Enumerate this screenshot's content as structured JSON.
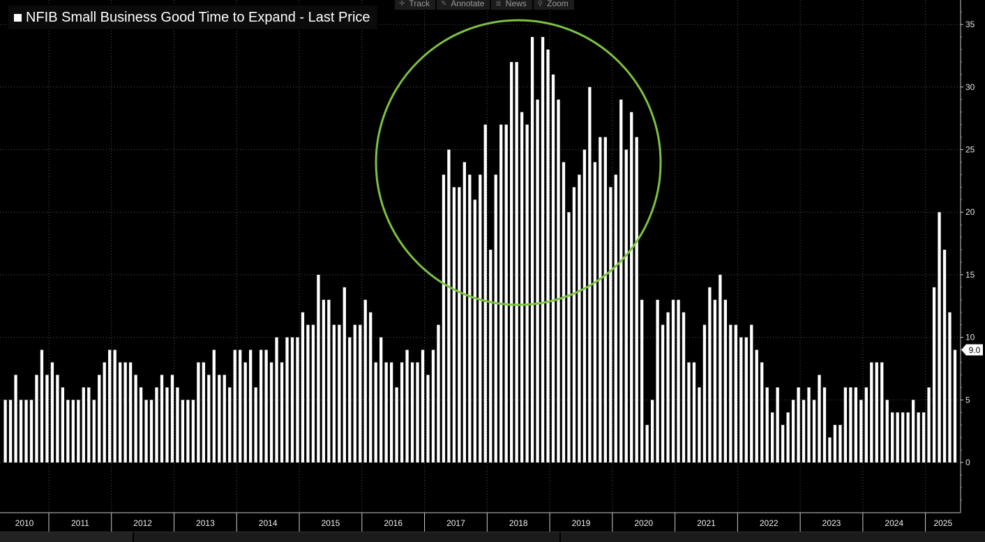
{
  "legend": {
    "label": "NFIB Small Business Good Time to Expand - Last Price"
  },
  "toolbar": [
    {
      "label": "Track",
      "icon": "crosshair-icon"
    },
    {
      "label": "Annotate",
      "icon": "pencil-icon"
    },
    {
      "label": "News",
      "icon": "news-icon"
    },
    {
      "label": "Zoom",
      "icon": "magnifier-icon"
    }
  ],
  "colors": {
    "background": "#000000",
    "bars": "#ffffff",
    "grid": "#5a5a5a",
    "highlight_circle": "#7dc242"
  },
  "chart_data": {
    "type": "bar",
    "title": "NFIB Small Business Good Time to Expand - Last Price",
    "y_axis": {
      "position": "right",
      "ylim": [
        -3,
        36
      ],
      "ticks": [
        0,
        5,
        10,
        15,
        20,
        25,
        30,
        35
      ]
    },
    "x_axis": {
      "years": [
        "2010",
        "2011",
        "2012",
        "2013",
        "2014",
        "2015",
        "2016",
        "2017",
        "2018",
        "2019",
        "2020",
        "2021",
        "2022",
        "2023",
        "2024",
        "2025"
      ]
    },
    "grid": true,
    "last_value_label": "9.0",
    "series": [
      {
        "values": [
          5,
          5,
          7,
          5,
          5,
          5,
          7,
          9,
          7,
          8,
          7,
          6,
          5,
          5,
          5,
          6,
          6,
          5,
          7,
          8,
          9,
          9,
          8,
          8,
          8,
          7,
          6,
          5,
          5,
          6,
          7,
          6,
          7,
          6,
          5,
          5,
          5,
          8,
          8,
          7,
          9,
          7,
          7,
          6,
          9,
          9,
          8,
          9,
          6,
          9,
          9,
          8,
          10,
          8,
          10,
          10,
          10,
          12,
          11,
          11,
          15,
          13,
          13,
          11,
          11,
          14,
          10,
          11,
          11,
          13,
          12,
          8,
          10,
          8,
          8,
          6,
          8,
          9,
          8,
          8,
          9,
          7,
          9,
          11,
          23,
          25,
          22,
          22,
          24,
          23,
          21,
          23,
          27,
          17,
          23,
          27,
          27,
          32,
          32,
          28,
          27,
          34,
          29,
          34,
          33,
          31,
          29,
          24,
          20,
          22,
          23,
          25,
          30,
          24,
          26,
          26,
          22,
          23,
          29,
          25,
          28,
          26,
          13,
          3,
          5,
          13,
          11,
          12,
          13,
          13,
          12,
          8,
          8,
          6,
          11,
          14,
          13,
          15,
          13,
          11,
          11,
          10,
          10,
          11,
          9,
          8,
          6,
          4,
          6,
          3,
          4,
          5,
          6,
          5,
          6,
          5,
          7,
          6,
          2,
          3,
          3,
          6,
          6,
          6,
          5,
          6,
          8,
          8,
          8,
          5,
          4,
          4,
          4,
          4,
          5,
          4,
          4,
          6,
          14,
          20,
          17,
          12,
          9
        ]
      }
    ],
    "annotation": "green circle highlighting 2017-2019 peak"
  }
}
